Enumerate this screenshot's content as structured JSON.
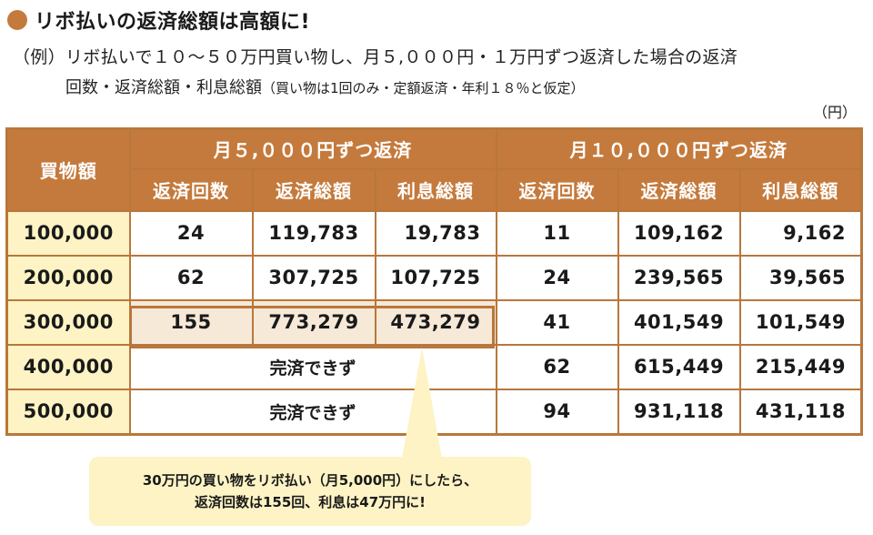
{
  "title": "リボ払いの返済総額は高額に!",
  "description_line1": "（例）リボ払いで１０～５０万円買い物し、月５,０００円・１万円ずつ返済した場合の返済",
  "description_line2": "回数・返済総額・利息総額",
  "description_note": "（買い物は1回のみ・定額返済・年利１８％と仮定）",
  "unit": "（円）",
  "table": {
    "col_amount": "買物額",
    "group1": "月５,０００円ずつ返済",
    "group2": "月１０,０００円ずつ返済",
    "sub": [
      "返済回数",
      "返済総額",
      "利息総額",
      "返済回数",
      "返済総額",
      "利息総額"
    ],
    "not_repayable": "完済できず",
    "rows": [
      {
        "amount": "100,000",
        "g1": [
          "24",
          "119,783",
          "19,783"
        ],
        "g2": [
          "11",
          "109,162",
          "9,162"
        ]
      },
      {
        "amount": "200,000",
        "g1": [
          "62",
          "307,725",
          "107,725"
        ],
        "g2": [
          "24",
          "239,565",
          "39,565"
        ]
      },
      {
        "amount": "300,000",
        "g1": [
          "155",
          "773,279",
          "473,279"
        ],
        "g2": [
          "41",
          "401,549",
          "101,549"
        ]
      },
      {
        "amount": "400,000",
        "g2": [
          "62",
          "615,449",
          "215,449"
        ]
      },
      {
        "amount": "500,000",
        "g2": [
          "94",
          "931,118",
          "431,118"
        ]
      }
    ]
  },
  "callout": {
    "line1": "30万円の買い物をリボ払い（月5,000円）にしたら、",
    "line2": "返済回数は155回、利息は47万円に!"
  },
  "colors": {
    "accent": "#b8773c",
    "header": "#c47a3c",
    "row_label_bg": "#fdf3c4",
    "highlight_bg": "#f7e9d8"
  }
}
